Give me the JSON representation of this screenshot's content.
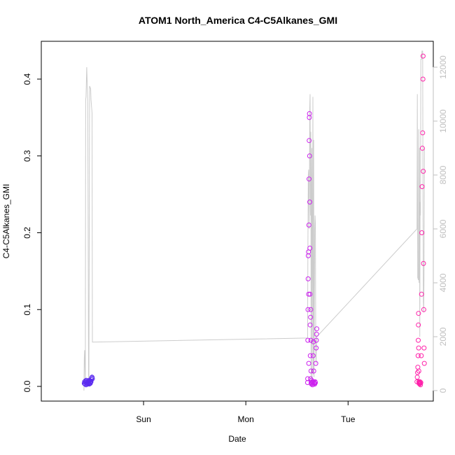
{
  "chart_data": {
    "type": "scatter",
    "title": "ATOM1 North_America C4-C5Alkanes_GMI",
    "xlabel": "Date",
    "ylabel": "C4-C5Alkanes_GMI",
    "x_tick_labels": [
      "Sun",
      "Mon",
      "Tue"
    ],
    "x_ticks": [
      "2016-07-31T00:00",
      "2016-08-01T00:00",
      "2016-08-02T00:00"
    ],
    "xlim": [
      "2016-07-30T00:00",
      "2016-08-02T20:00"
    ],
    "ylim": [
      0,
      0.43
    ],
    "y_ticks": [
      0.0,
      0.1,
      0.2,
      0.3,
      0.4
    ],
    "y_tick_labels": [
      "0.0",
      "0.1",
      "0.2",
      "0.3",
      "0.4"
    ],
    "y2_ticks": [
      0,
      2000,
      4000,
      6000,
      8000,
      10000,
      12000
    ],
    "y2_tick_labels": [
      "0",
      "2000",
      "4000",
      "6000",
      "8000",
      "10000",
      "12000"
    ],
    "y2lim": [
      0,
      12500
    ],
    "grid": false,
    "colors": {
      "line": "#cccccc",
      "point_segment_1": "#5b2bf0",
      "point_segment_2": "#cc22ee",
      "point_segment_3": "#ff22aa",
      "right_axis": "#bfbfbf"
    },
    "series": [
      {
        "kind": "altitude-line",
        "points": [
          [
            "2016-07-30T10:00",
            0
          ],
          [
            "2016-07-30T10:05",
            1200
          ],
          [
            "2016-07-30T10:10",
            1500
          ],
          [
            "2016-07-30T10:20",
            200
          ],
          [
            "2016-07-30T10:25",
            10800
          ],
          [
            "2016-07-30T10:30",
            10900
          ],
          [
            "2016-07-30T10:40",
            12000
          ],
          [
            "2016-07-30T10:55",
            10700
          ],
          [
            "2016-07-30T11:05",
            500
          ],
          [
            "2016-07-30T11:10",
            200
          ],
          [
            "2016-07-30T11:20",
            11300
          ],
          [
            "2016-07-30T11:35",
            11200
          ],
          [
            "2016-07-30T11:40",
            10800
          ],
          [
            "2016-07-30T11:55",
            10300
          ],
          [
            "2016-07-30T12:00",
            1800
          ],
          [
            "2016-08-01T14:30",
            1950
          ],
          [
            "2016-08-01T14:35",
            5500
          ],
          [
            "2016-08-01T14:40",
            8000
          ],
          [
            "2016-08-01T14:45",
            8200
          ],
          [
            "2016-08-01T14:50",
            6000
          ],
          [
            "2016-08-01T14:55",
            7000
          ],
          [
            "2016-08-01T15:00",
            10500
          ],
          [
            "2016-08-01T15:05",
            11000
          ],
          [
            "2016-08-01T15:10",
            6500
          ],
          [
            "2016-08-01T15:15",
            9600
          ],
          [
            "2016-08-01T15:20",
            200
          ],
          [
            "2016-08-01T15:25",
            7200
          ],
          [
            "2016-08-01T15:30",
            9000
          ],
          [
            "2016-08-01T15:35",
            400
          ],
          [
            "2016-08-01T15:45",
            10900
          ],
          [
            "2016-08-01T15:50",
            600
          ],
          [
            "2016-08-01T15:55",
            9300
          ],
          [
            "2016-08-01T16:00",
            500
          ],
          [
            "2016-08-01T16:10",
            6000
          ],
          [
            "2016-08-01T16:15",
            6500
          ],
          [
            "2016-08-01T16:20",
            6200
          ],
          [
            "2016-08-01T16:25",
            1300
          ],
          [
            "2016-08-01T16:30",
            1000
          ],
          [
            "2016-08-01T16:35",
            1800
          ],
          [
            "2016-08-01T16:40",
            2000
          ],
          [
            "2016-08-02T16:10",
            6000
          ],
          [
            "2016-08-02T16:15",
            11000
          ],
          [
            "2016-08-02T16:20",
            4200
          ],
          [
            "2016-08-02T16:30",
            4100
          ],
          [
            "2016-08-02T16:35",
            9700
          ],
          [
            "2016-08-02T16:40",
            4000
          ],
          [
            "2016-08-02T16:45",
            9000
          ],
          [
            "2016-08-02T16:50",
            2000
          ],
          [
            "2016-08-02T16:55",
            7000
          ],
          [
            "2016-08-02T17:00",
            6500
          ],
          [
            "2016-08-02T17:05",
            12300
          ],
          [
            "2016-08-02T17:15",
            12300
          ],
          [
            "2016-08-02T17:20",
            12600
          ],
          [
            "2016-08-02T17:30",
            12600
          ],
          [
            "2016-08-02T17:35",
            6600
          ],
          [
            "2016-08-02T17:40",
            3300
          ],
          [
            "2016-08-02T17:45",
            2900
          ],
          [
            "2016-08-02T17:50",
            4500
          ],
          [
            "2016-08-02T17:55",
            9000
          ]
        ]
      },
      {
        "kind": "points",
        "color": "#5b2bf0",
        "points": [
          [
            "2016-07-30T10:05",
            0.004
          ],
          [
            "2016-07-30T10:10",
            0.006
          ],
          [
            "2016-07-30T10:15",
            0.003
          ],
          [
            "2016-07-30T10:20",
            0.007
          ],
          [
            "2016-07-30T10:25",
            0.005
          ],
          [
            "2016-07-30T10:30",
            0.002
          ],
          [
            "2016-07-30T10:35",
            0.008
          ],
          [
            "2016-07-30T10:40",
            0.004
          ],
          [
            "2016-07-30T10:45",
            0.006
          ],
          [
            "2016-07-30T10:50",
            0.003
          ],
          [
            "2016-07-30T10:55",
            0.005
          ],
          [
            "2016-07-30T11:00",
            0.007
          ],
          [
            "2016-07-30T11:05",
            0.004
          ],
          [
            "2016-07-30T11:10",
            0.006
          ],
          [
            "2016-07-30T11:15",
            0.003
          ],
          [
            "2016-07-30T11:20",
            0.008
          ],
          [
            "2016-07-30T11:25",
            0.005
          ],
          [
            "2016-07-30T11:30",
            0.004
          ],
          [
            "2016-07-30T11:35",
            0.007
          ],
          [
            "2016-07-30T11:40",
            0.006
          ],
          [
            "2016-07-30T11:45",
            0.009
          ],
          [
            "2016-07-30T11:50",
            0.011
          ],
          [
            "2016-07-30T11:55",
            0.012
          ],
          [
            "2016-07-30T12:00",
            0.01
          ]
        ]
      },
      {
        "kind": "points",
        "color": "#cc22ee",
        "points": [
          [
            "2016-08-01T14:30",
            0.005
          ],
          [
            "2016-08-01T14:32",
            0.01
          ],
          [
            "2016-08-01T14:34",
            0.06
          ],
          [
            "2016-08-01T14:36",
            0.1
          ],
          [
            "2016-08-01T14:38",
            0.14
          ],
          [
            "2016-08-01T14:40",
            0.17
          ],
          [
            "2016-08-01T14:42",
            0.175
          ],
          [
            "2016-08-01T14:44",
            0.12
          ],
          [
            "2016-08-01T14:46",
            0.03
          ],
          [
            "2016-08-01T14:48",
            0.21
          ],
          [
            "2016-08-01T14:50",
            0.27
          ],
          [
            "2016-08-01T14:52",
            0.32
          ],
          [
            "2016-08-01T14:54",
            0.35
          ],
          [
            "2016-08-01T14:56",
            0.355
          ],
          [
            "2016-08-01T14:58",
            0.3
          ],
          [
            "2016-08-01T15:00",
            0.24
          ],
          [
            "2016-08-01T15:02",
            0.18
          ],
          [
            "2016-08-01T15:04",
            0.12
          ],
          [
            "2016-08-01T15:06",
            0.08
          ],
          [
            "2016-08-01T15:08",
            0.04
          ],
          [
            "2016-08-01T15:10",
            0.01
          ],
          [
            "2016-08-01T15:12",
            0.09
          ],
          [
            "2016-08-01T15:14",
            0.1
          ],
          [
            "2016-08-01T15:16",
            0.06
          ],
          [
            "2016-08-01T15:18",
            0.02
          ],
          [
            "2016-08-01T15:20",
            0.005
          ],
          [
            "2016-08-01T15:24",
            0.003
          ],
          [
            "2016-08-01T15:28",
            0.008
          ],
          [
            "2016-08-01T15:32",
            0.004
          ],
          [
            "2016-08-01T15:36",
            0.006
          ],
          [
            "2016-08-01T15:40",
            0.002
          ],
          [
            "2016-08-01T15:44",
            0.005
          ],
          [
            "2016-08-01T15:48",
            0.04
          ],
          [
            "2016-08-01T15:52",
            0.058
          ],
          [
            "2016-08-01T15:56",
            0.02
          ],
          [
            "2016-08-01T16:00",
            0.005
          ],
          [
            "2016-08-01T16:05",
            0.004
          ],
          [
            "2016-08-01T16:10",
            0.003
          ],
          [
            "2016-08-01T16:15",
            0.006
          ],
          [
            "2016-08-01T16:20",
            0.005
          ],
          [
            "2016-08-01T16:25",
            0.03
          ],
          [
            "2016-08-01T16:30",
            0.05
          ],
          [
            "2016-08-01T16:33",
            0.06
          ],
          [
            "2016-08-01T16:36",
            0.068
          ],
          [
            "2016-08-01T16:39",
            0.075
          ]
        ]
      },
      {
        "kind": "points",
        "color": "#ff22aa",
        "points": [
          [
            "2016-08-02T16:10",
            0.006
          ],
          [
            "2016-08-02T16:14",
            0.012
          ],
          [
            "2016-08-02T16:18",
            0.018
          ],
          [
            "2016-08-02T16:22",
            0.025
          ],
          [
            "2016-08-02T16:26",
            0.04
          ],
          [
            "2016-08-02T16:28",
            0.06
          ],
          [
            "2016-08-02T16:30",
            0.08
          ],
          [
            "2016-08-02T16:32",
            0.095
          ],
          [
            "2016-08-02T16:34",
            0.05
          ],
          [
            "2016-08-02T16:36",
            0.02
          ],
          [
            "2016-08-02T16:38",
            0.006
          ],
          [
            "2016-08-02T16:40",
            0.004
          ],
          [
            "2016-08-02T16:44",
            0.005
          ],
          [
            "2016-08-02T16:48",
            0.003
          ],
          [
            "2016-08-02T16:52",
            0.006
          ],
          [
            "2016-08-02T16:56",
            0.004
          ],
          [
            "2016-08-02T17:00",
            0.002
          ],
          [
            "2016-08-02T17:05",
            0.005
          ],
          [
            "2016-08-02T17:10",
            0.04
          ],
          [
            "2016-08-02T17:14",
            0.12
          ],
          [
            "2016-08-02T17:18",
            0.2
          ],
          [
            "2016-08-02T17:22",
            0.26
          ],
          [
            "2016-08-02T17:26",
            0.31
          ],
          [
            "2016-08-02T17:30",
            0.33
          ],
          [
            "2016-08-02T17:34",
            0.4
          ],
          [
            "2016-08-02T17:36",
            0.43
          ],
          [
            "2016-08-02T17:38",
            0.28
          ],
          [
            "2016-08-02T17:42",
            0.16
          ],
          [
            "2016-08-02T17:46",
            0.1
          ],
          [
            "2016-08-02T17:50",
            0.05
          ],
          [
            "2016-08-02T17:54",
            0.03
          ]
        ]
      }
    ]
  }
}
